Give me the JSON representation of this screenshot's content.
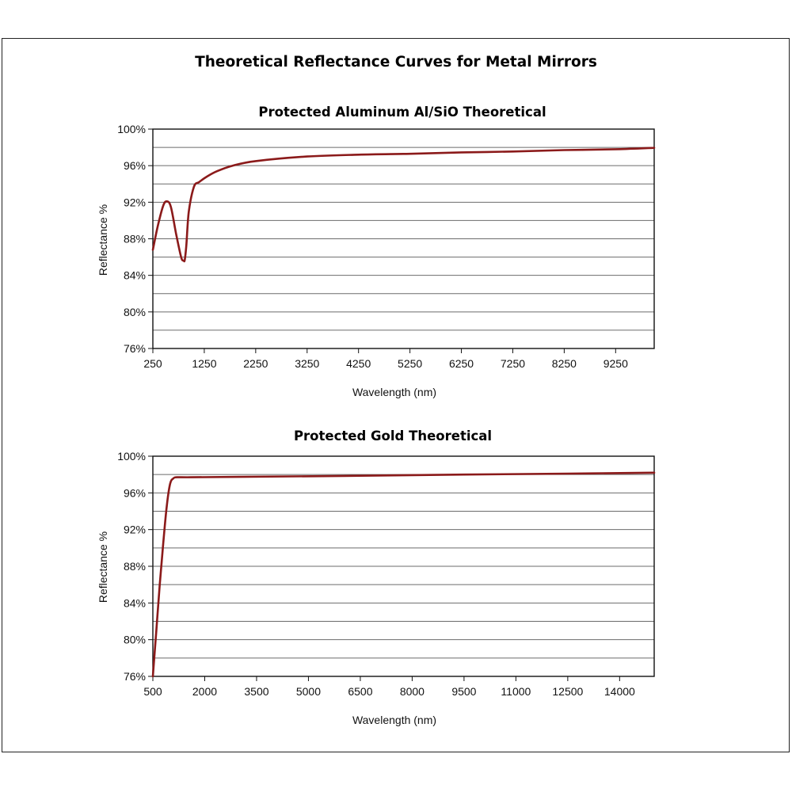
{
  "page_title": "Theoretical Reflectance Curves for Metal Mirrors",
  "chart_data": [
    {
      "type": "line",
      "title": "Protected Aluminum Al/SiO Theoretical",
      "xlabel": "Wavelength (nm)",
      "ylabel": "Reflectance %",
      "xlim": [
        250,
        10000
      ],
      "ylim": [
        76,
        100
      ],
      "x_ticks": [
        250,
        1250,
        2250,
        3250,
        4250,
        5250,
        6250,
        7250,
        8250,
        9250
      ],
      "x_tick_labels": [
        "250",
        "1250",
        "2250",
        "3250",
        "4250",
        "5250",
        "6250",
        "7250",
        "8250",
        "9250"
      ],
      "y_ticks": [
        76,
        80,
        84,
        88,
        92,
        96,
        100
      ],
      "y_tick_labels": [
        "76%",
        "80%",
        "84%",
        "88%",
        "92%",
        "96%",
        "100%"
      ],
      "gridlines_y": [
        78,
        80,
        82,
        84,
        86,
        88,
        90,
        92,
        94,
        96,
        98
      ],
      "grid": true,
      "line_color": "#8b1a1a",
      "series": [
        {
          "x": [
            250,
            350,
            450,
            520,
            600,
            700,
            800,
            850,
            870,
            900,
            950,
            1050,
            1150,
            1300,
            1500,
            1800,
            2250,
            3250,
            4250,
            5250,
            6250,
            7250,
            8250,
            9250,
            10000
          ],
          "y": [
            86.8,
            89.5,
            91.6,
            92.1,
            91.5,
            88.6,
            86.0,
            85.6,
            85.7,
            87.2,
            91.0,
            93.7,
            94.2,
            94.8,
            95.4,
            96.0,
            96.5,
            97.0,
            97.2,
            97.3,
            97.45,
            97.55,
            97.7,
            97.8,
            97.95
          ]
        }
      ]
    },
    {
      "type": "line",
      "title": "Protected Gold Theoretical",
      "xlabel": "Wavelength (nm)",
      "ylabel": "Reflectance %",
      "xlim": [
        500,
        15000
      ],
      "ylim": [
        76,
        100
      ],
      "x_ticks": [
        500,
        2000,
        3500,
        5000,
        6500,
        8000,
        9500,
        11000,
        12500,
        14000
      ],
      "x_tick_labels": [
        "500",
        "2000",
        "3500",
        "5000",
        "6500",
        "8000",
        "9500",
        "11000",
        "12500",
        "14000"
      ],
      "y_ticks": [
        76,
        80,
        84,
        88,
        92,
        96,
        100
      ],
      "y_tick_labels": [
        "76%",
        "80%",
        "84%",
        "88%",
        "92%",
        "96%",
        "100%"
      ],
      "gridlines_y": [
        78,
        80,
        82,
        84,
        86,
        88,
        90,
        92,
        94,
        96,
        98
      ],
      "grid": true,
      "line_color": "#8b1a1a",
      "series": [
        {
          "x": [
            500,
            600,
            700,
            800,
            900,
            1000,
            1100,
            1200,
            1600,
            3000,
            6000,
            9500,
            12500,
            15000
          ],
          "y": [
            76.0,
            81.0,
            86.0,
            90.5,
            94.5,
            97.0,
            97.6,
            97.7,
            97.7,
            97.75,
            97.85,
            98.0,
            98.1,
            98.2
          ]
        }
      ]
    }
  ]
}
